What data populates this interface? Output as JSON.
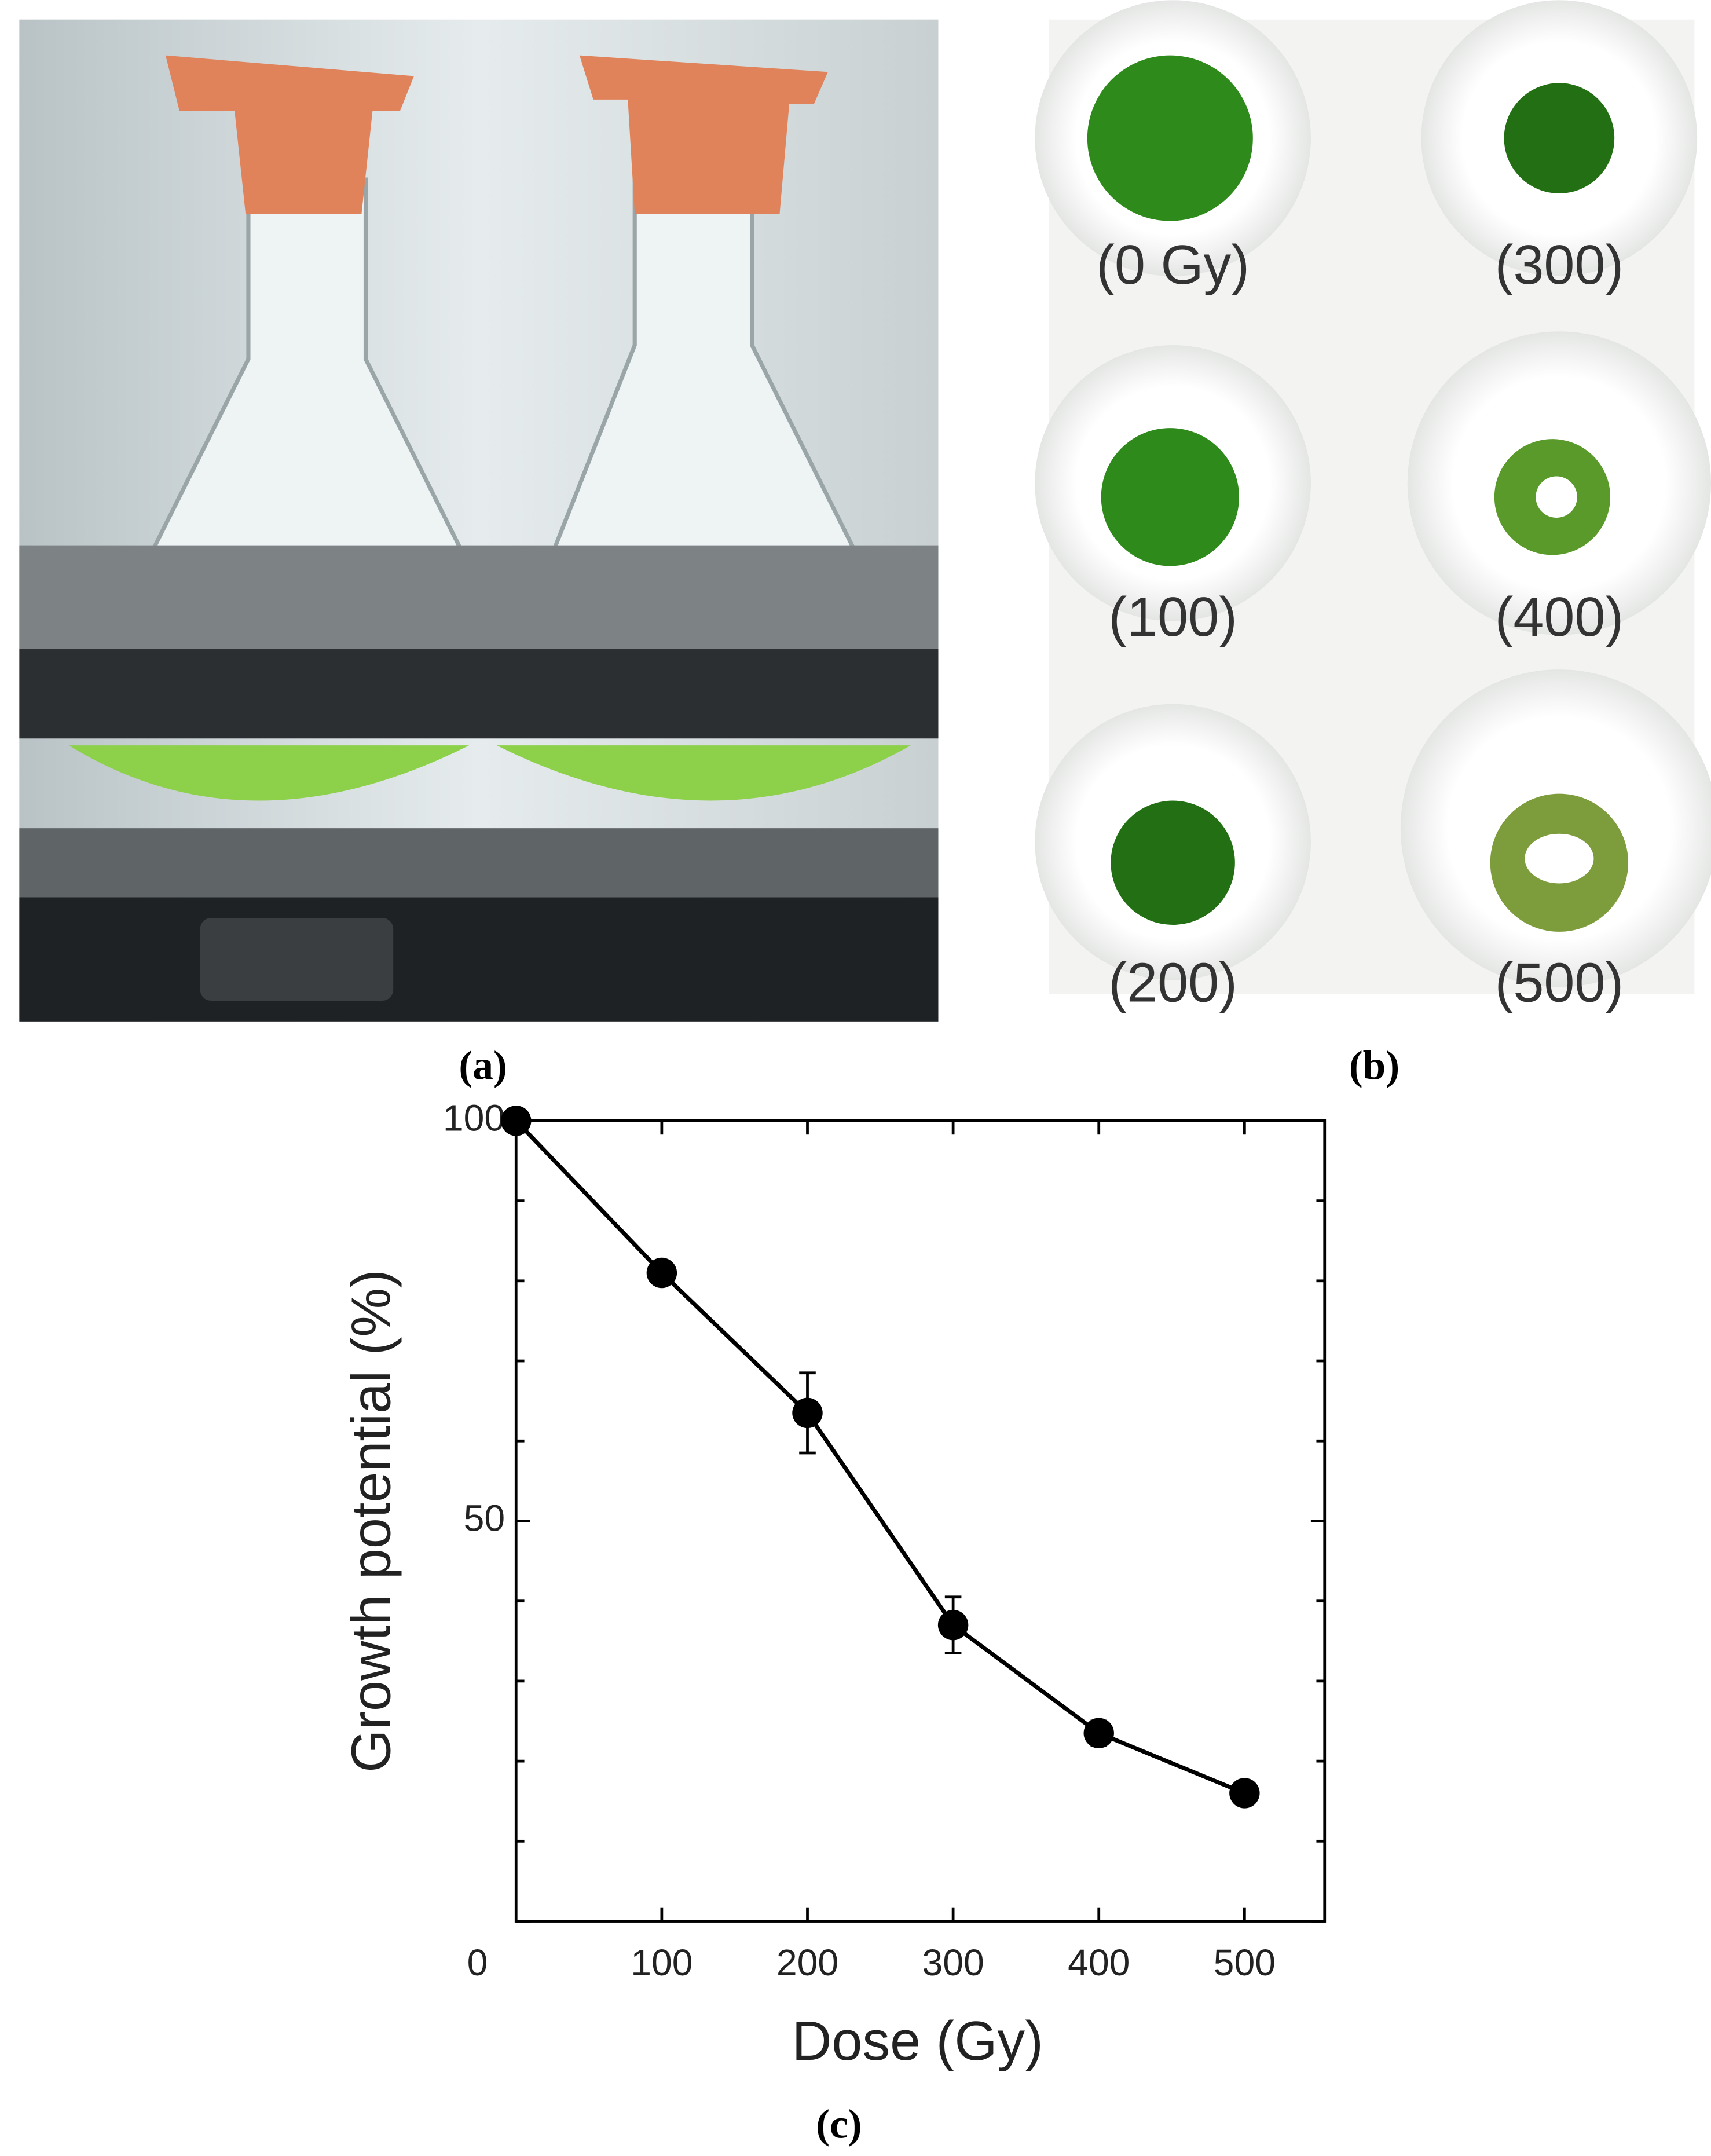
{
  "figure": {
    "panel_labels": [
      "(a)",
      "(b)",
      "(c)"
    ],
    "dish_labels": [
      "(0 Gy)",
      "(300)",
      "(100)",
      "(400)",
      "(200)",
      "(500)"
    ]
  },
  "chart_data": {
    "type": "line",
    "x_label": "Dose (Gy)",
    "y_label": "Growth potential (%)",
    "x": [
      0,
      100,
      200,
      300,
      400,
      500
    ],
    "series": [
      {
        "color": "#000000",
        "values": [
          100,
          81,
          63.5,
          37,
          23.5,
          16
        ],
        "errors": [
          0,
          0,
          5,
          3.5,
          1.5,
          0
        ]
      }
    ],
    "xlim": [
      0,
      555
    ],
    "ylim": [
      0,
      100
    ],
    "xticks": [
      100,
      200,
      300,
      400,
      500
    ],
    "yticks": [
      0,
      50,
      100
    ],
    "yminorticks": [
      10,
      20,
      30,
      40,
      60,
      70,
      80,
      90
    ]
  }
}
